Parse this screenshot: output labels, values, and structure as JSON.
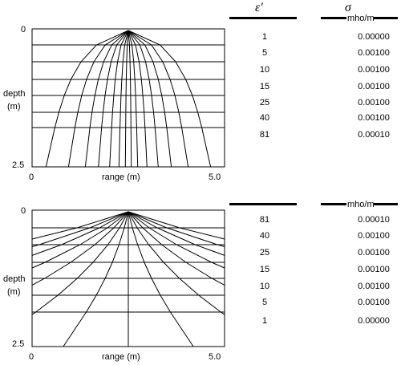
{
  "header": {
    "epsilon_symbol": "ε′",
    "sigma_symbol": "σ",
    "sigma_unit": "mho/m"
  },
  "panels": [
    {
      "id": "top",
      "axes": {
        "depth_top": "0",
        "depth_bottom": "2.5",
        "depth_label_1": "depth",
        "depth_label_2": "(m)",
        "range_left": "0",
        "range_right": "5.0",
        "range_label": "range (m)"
      },
      "layers": [
        {
          "epsilon": "1",
          "sigma": "0.00000"
        },
        {
          "epsilon": "5",
          "sigma": "0.00100"
        },
        {
          "epsilon": "10",
          "sigma": "0.00100"
        },
        {
          "epsilon": "15",
          "sigma": "0.00100"
        },
        {
          "epsilon": "25",
          "sigma": "0.00100"
        },
        {
          "epsilon": "40",
          "sigma": "0.00100"
        },
        {
          "epsilon": "81",
          "sigma": "0.00010"
        }
      ]
    },
    {
      "id": "bottom",
      "axes": {
        "depth_top": "0",
        "depth_bottom": "2.5",
        "depth_label_1": "depth",
        "depth_label_2": "(m)",
        "range_left": "0",
        "range_right": "5.0",
        "range_label": "range (m)"
      },
      "layers": [
        {
          "epsilon": "81",
          "sigma": "0.00010"
        },
        {
          "epsilon": "40",
          "sigma": "0.00100"
        },
        {
          "epsilon": "25",
          "sigma": "0.00100"
        },
        {
          "epsilon": "15",
          "sigma": "0.00100"
        },
        {
          "epsilon": "10",
          "sigma": "0.00100"
        },
        {
          "epsilon": "5",
          "sigma": "0.00100"
        },
        {
          "epsilon": "1",
          "sigma": "0.00000"
        }
      ]
    }
  ]
}
